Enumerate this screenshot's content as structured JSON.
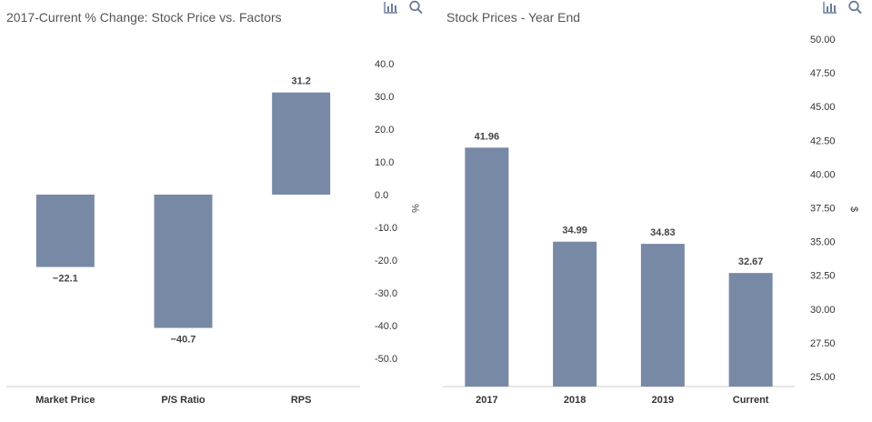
{
  "colors": {
    "bar": "#7789a5",
    "axis_text": "#333333",
    "title_text": "#555555",
    "label_text": "#444444",
    "baseline": "#cccccc",
    "icon": "#6a7d99"
  },
  "icons": [
    "chart-menu-icon",
    "zoom-icon"
  ],
  "chart_data": [
    {
      "type": "bar",
      "title": "2017-Current % Change: Stock Price vs. Factors",
      "categories": [
        "Market Price",
        "P/S Ratio",
        "RPS"
      ],
      "values": [
        -22.1,
        -40.7,
        31.2
      ],
      "value_labels": [
        "−22.1",
        "−40.7",
        "31.2"
      ],
      "ylabel": "%",
      "y_axis_side": "right",
      "ylim": [
        -50,
        40
      ],
      "yticks": [
        40,
        30,
        20,
        10,
        0,
        -10,
        -20,
        -30,
        -40,
        -50
      ],
      "ytick_labels": [
        "40.0",
        "30.0",
        "20.0",
        "10.0",
        "0.0",
        "-10.0",
        "-20.0",
        "-30.0",
        "-40.0",
        "-50.0"
      ],
      "grid": false,
      "legend": "none"
    },
    {
      "type": "bar",
      "title": "Stock Prices - Year End",
      "categories": [
        "2017",
        "2018",
        "2019",
        "Current"
      ],
      "values": [
        41.96,
        34.99,
        34.83,
        32.67
      ],
      "value_labels": [
        "41.96",
        "34.99",
        "34.83",
        "32.67"
      ],
      "ylabel": "$",
      "y_axis_side": "right",
      "ylim": [
        25,
        50
      ],
      "yticks": [
        50,
        47.5,
        45,
        42.5,
        40,
        37.5,
        35,
        32.5,
        30,
        27.5,
        25
      ],
      "ytick_labels": [
        "50.00",
        "47.50",
        "45.00",
        "42.50",
        "40.00",
        "37.50",
        "35.00",
        "32.50",
        "30.00",
        "27.50",
        "25.00"
      ],
      "grid": false,
      "legend": "none"
    }
  ]
}
